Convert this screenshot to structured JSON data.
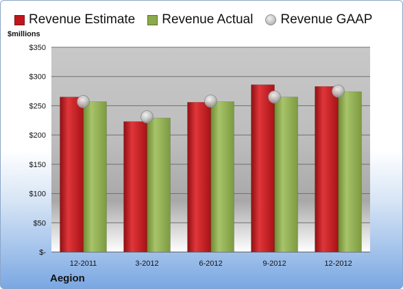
{
  "company": "Aegion",
  "ylabel": "$millions",
  "colors": {
    "estimate": "#c0161c",
    "actual": "#8aaa4c",
    "gaap": "#bdbdbd"
  },
  "chart_data": {
    "type": "bar",
    "title": "",
    "xlabel": "",
    "ylabel": "$millions",
    "ylim": [
      0,
      350
    ],
    "yticks": [
      0,
      50,
      100,
      150,
      200,
      250,
      300,
      350
    ],
    "ytick_labels": [
      "$-",
      "$50",
      "$100",
      "$150",
      "$200",
      "$250",
      "$300",
      "$350"
    ],
    "grid": true,
    "legend_position": "top",
    "categories": [
      "12-2011",
      "3-2012",
      "6-2012",
      "9-2012",
      "12-2012"
    ],
    "series": [
      {
        "name": "Revenue Estimate",
        "kind": "bar",
        "values": [
          265,
          223,
          256,
          286,
          283
        ]
      },
      {
        "name": "Revenue Actual",
        "kind": "bar",
        "values": [
          257,
          229,
          257,
          265,
          274
        ]
      },
      {
        "name": "Revenue GAAP",
        "kind": "marker",
        "values": [
          257,
          231,
          258,
          265,
          275
        ]
      }
    ]
  }
}
